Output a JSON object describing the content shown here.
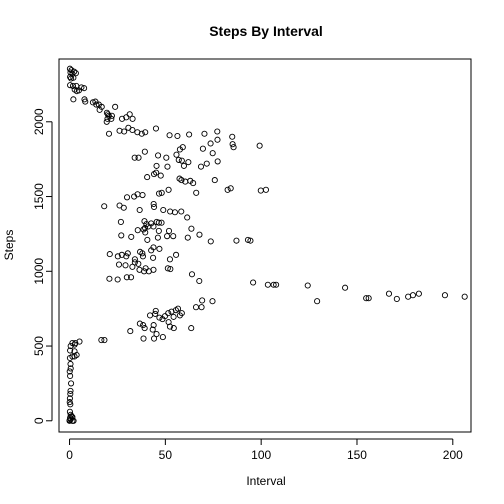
{
  "chart_data": {
    "type": "scatter",
    "title": "Steps By Interval",
    "xlabel": "Interval",
    "ylabel": "Steps",
    "xlim": [
      -5.5,
      209.5
    ],
    "ylim": [
      -75,
      2420
    ],
    "x_ticks": [
      0,
      50,
      100,
      150,
      200
    ],
    "y_ticks": [
      0,
      500,
      1000,
      1500,
      2000
    ],
    "x_tick_labels": [
      "0",
      "50",
      "100",
      "150",
      "200"
    ],
    "y_tick_labels": [
      "0",
      "500",
      "1000",
      "1500",
      "2000"
    ],
    "grid": false,
    "legend": "none",
    "marker": "open-circle",
    "series": [
      {
        "points": [
          [
            0.2,
            2355
          ],
          [
            1.0,
            2345
          ],
          [
            0.5,
            2330
          ],
          [
            2.4,
            2335
          ],
          [
            1.5,
            2320
          ],
          [
            3.3,
            2325
          ],
          [
            0.3,
            2300
          ],
          [
            2.0,
            2295
          ],
          [
            0.8,
            2290
          ],
          [
            0.3,
            2245
          ],
          [
            1.8,
            2240
          ],
          [
            3.5,
            2240
          ],
          [
            6.2,
            2230
          ],
          [
            7.6,
            2225
          ],
          [
            2.7,
            2215
          ],
          [
            3.8,
            2205
          ],
          [
            4.9,
            2210
          ],
          [
            2.0,
            2150
          ],
          [
            7.8,
            2150
          ],
          [
            8.2,
            2135
          ],
          [
            12.2,
            2130
          ],
          [
            13.5,
            2135
          ],
          [
            14.0,
            2115
          ],
          [
            15.3,
            2115
          ],
          [
            16.8,
            2100
          ],
          [
            15.7,
            2080
          ],
          [
            19.5,
            2060
          ],
          [
            20.0,
            2050
          ],
          [
            20.5,
            2040
          ],
          [
            22.1,
            2040
          ],
          [
            19.8,
            2020
          ],
          [
            21.8,
            2020
          ],
          [
            19.4,
            2000
          ],
          [
            23.8,
            2100
          ],
          [
            27.4,
            2020
          ],
          [
            29.6,
            2030
          ],
          [
            30.7,
            1960
          ],
          [
            31.4,
            2050
          ],
          [
            32.9,
            2020
          ],
          [
            32.8,
            1945
          ],
          [
            26.1,
            1940
          ],
          [
            28.5,
            1935
          ],
          [
            35.4,
            1930
          ],
          [
            39.5,
            1930
          ],
          [
            37.7,
            1920
          ],
          [
            20.6,
            1920
          ],
          [
            45.1,
            1955
          ],
          [
            52.2,
            1910
          ],
          [
            56.3,
            1905
          ],
          [
            62.4,
            1915
          ],
          [
            70.4,
            1920
          ],
          [
            77.1,
            1935
          ],
          [
            84.9,
            1900
          ],
          [
            85.1,
            1850
          ],
          [
            85.6,
            1830
          ],
          [
            99.2,
            1840
          ],
          [
            77.2,
            1880
          ],
          [
            73.6,
            1855
          ],
          [
            57.6,
            1815
          ],
          [
            59.1,
            1830
          ],
          [
            69.6,
            1820
          ],
          [
            74.7,
            1790
          ],
          [
            55.8,
            1780
          ],
          [
            39.3,
            1800
          ],
          [
            34.0,
            1760
          ],
          [
            36.0,
            1760
          ],
          [
            46.2,
            1775
          ],
          [
            50.5,
            1760
          ],
          [
            57.0,
            1745
          ],
          [
            58.6,
            1740
          ],
          [
            62.0,
            1730
          ],
          [
            71.6,
            1720
          ],
          [
            77.3,
            1735
          ],
          [
            59.7,
            1705
          ],
          [
            45.4,
            1705
          ],
          [
            51.1,
            1700
          ],
          [
            68.6,
            1700
          ],
          [
            44.1,
            1650
          ],
          [
            45.2,
            1660
          ],
          [
            47.6,
            1640
          ],
          [
            40.5,
            1630
          ],
          [
            58.4,
            1610
          ],
          [
            57.4,
            1620
          ],
          [
            63.0,
            1605
          ],
          [
            60.4,
            1600
          ],
          [
            64.5,
            1590
          ],
          [
            75.8,
            1610
          ],
          [
            51.7,
            1545
          ],
          [
            35.5,
            1515
          ],
          [
            38.1,
            1510
          ],
          [
            33.7,
            1500
          ],
          [
            30.0,
            1495
          ],
          [
            46.7,
            1520
          ],
          [
            48.1,
            1525
          ],
          [
            66.1,
            1525
          ],
          [
            82.5,
            1545
          ],
          [
            84.1,
            1555
          ],
          [
            99.8,
            1540
          ],
          [
            102.5,
            1545
          ],
          [
            18.1,
            1435
          ],
          [
            26.1,
            1440
          ],
          [
            28.3,
            1425
          ],
          [
            36.6,
            1410
          ],
          [
            44.1,
            1430
          ],
          [
            43.9,
            1450
          ],
          [
            52.5,
            1400
          ],
          [
            48.9,
            1410
          ],
          [
            55.0,
            1395
          ],
          [
            58.3,
            1400
          ],
          [
            61.4,
            1360
          ],
          [
            26.8,
            1330
          ],
          [
            39.1,
            1335
          ],
          [
            40.1,
            1315
          ],
          [
            43.8,
            1300
          ],
          [
            41.1,
            1300
          ],
          [
            39.4,
            1290
          ],
          [
            46.6,
            1325
          ],
          [
            48.0,
            1325
          ],
          [
            42.6,
            1320
          ],
          [
            45.5,
            1330
          ],
          [
            38.6,
            1280
          ],
          [
            35.6,
            1275
          ],
          [
            39.5,
            1260
          ],
          [
            46.6,
            1270
          ],
          [
            51.9,
            1270
          ],
          [
            63.6,
            1285
          ],
          [
            46.1,
            1225
          ],
          [
            50.9,
            1235
          ],
          [
            54.1,
            1235
          ],
          [
            61.7,
            1225
          ],
          [
            67.8,
            1245
          ],
          [
            27.0,
            1240
          ],
          [
            32.2,
            1230
          ],
          [
            40.6,
            1210
          ],
          [
            73.7,
            1200
          ],
          [
            87.1,
            1205
          ],
          [
            93.1,
            1210
          ],
          [
            94.4,
            1205
          ],
          [
            43.8,
            1160
          ],
          [
            46.9,
            1150
          ],
          [
            42.6,
            1140
          ],
          [
            36.8,
            1130
          ],
          [
            38.0,
            1120
          ],
          [
            30.4,
            1120
          ],
          [
            27.3,
            1110
          ],
          [
            25.2,
            1100
          ],
          [
            21.0,
            1115
          ],
          [
            29.6,
            1100
          ],
          [
            38.3,
            1100
          ],
          [
            34.1,
            1080
          ],
          [
            43.6,
            1090
          ],
          [
            52.4,
            1080
          ],
          [
            55.6,
            1110
          ],
          [
            34.1,
            1060
          ],
          [
            35.9,
            1050
          ],
          [
            25.8,
            1045
          ],
          [
            29.2,
            1040
          ],
          [
            32.8,
            1030
          ],
          [
            39.7,
            1020
          ],
          [
            36.5,
            1010
          ],
          [
            38.9,
            1000
          ],
          [
            41.4,
            1000
          ],
          [
            43.8,
            1010
          ],
          [
            51.3,
            1020
          ],
          [
            52.6,
            1015
          ],
          [
            29.9,
            960
          ],
          [
            32.1,
            960
          ],
          [
            20.8,
            950
          ],
          [
            25.1,
            945
          ],
          [
            67.7,
            935
          ],
          [
            63.9,
            980
          ],
          [
            95.8,
            925
          ],
          [
            103.5,
            910
          ],
          [
            106.5,
            910
          ],
          [
            107.8,
            910
          ],
          [
            124.3,
            905
          ],
          [
            129.2,
            800
          ],
          [
            143.8,
            890
          ],
          [
            154.8,
            820
          ],
          [
            156.1,
            820
          ],
          [
            166.7,
            850
          ],
          [
            170.8,
            815
          ],
          [
            176.7,
            830
          ],
          [
            179.2,
            840
          ],
          [
            182.3,
            850
          ],
          [
            195.9,
            840
          ],
          [
            206.2,
            830
          ],
          [
            74.6,
            800
          ],
          [
            69.2,
            805
          ],
          [
            68.9,
            760
          ],
          [
            66.0,
            760
          ],
          [
            56.6,
            750
          ],
          [
            55.5,
            740
          ],
          [
            53.2,
            730
          ],
          [
            51.5,
            720
          ],
          [
            45.0,
            735
          ],
          [
            44.7,
            715
          ],
          [
            42.0,
            705
          ],
          [
            49.8,
            700
          ],
          [
            58.6,
            720
          ],
          [
            57.6,
            705
          ],
          [
            54.3,
            695
          ],
          [
            46.9,
            690
          ],
          [
            48.5,
            680
          ],
          [
            51.7,
            660
          ],
          [
            36.7,
            650
          ],
          [
            38.4,
            640
          ],
          [
            43.9,
            640
          ],
          [
            52.4,
            630
          ],
          [
            54.4,
            620
          ],
          [
            63.5,
            620
          ],
          [
            39.2,
            620
          ],
          [
            31.7,
            600
          ],
          [
            43.4,
            610
          ],
          [
            45.4,
            580
          ],
          [
            48.7,
            560
          ],
          [
            38.6,
            550
          ],
          [
            44.1,
            550
          ],
          [
            16.6,
            540
          ],
          [
            18.2,
            540
          ],
          [
            5.2,
            530
          ],
          [
            3.0,
            520
          ],
          [
            1.5,
            520
          ],
          [
            2.7,
            510
          ],
          [
            0.6,
            500
          ],
          [
            0.3,
            470
          ],
          [
            2.6,
            465
          ],
          [
            3.7,
            440
          ],
          [
            2.6,
            430
          ],
          [
            1.5,
            430
          ],
          [
            0.2,
            420
          ],
          [
            0.5,
            380
          ],
          [
            0.6,
            350
          ],
          [
            0.1,
            330
          ],
          [
            0.3,
            300
          ],
          [
            0.8,
            250
          ],
          [
            0.5,
            200
          ],
          [
            0.4,
            180
          ],
          [
            0.2,
            150
          ],
          [
            0.1,
            125
          ],
          [
            0.4,
            110
          ],
          [
            0.2,
            60
          ],
          [
            0.6,
            40
          ],
          [
            1.0,
            30
          ],
          [
            1.5,
            25
          ],
          [
            0.3,
            20
          ],
          [
            0.6,
            10
          ],
          [
            0.1,
            5
          ],
          [
            2.1,
            0
          ],
          [
            1.5,
            0
          ],
          [
            0.0,
            0
          ]
        ]
      }
    ]
  }
}
